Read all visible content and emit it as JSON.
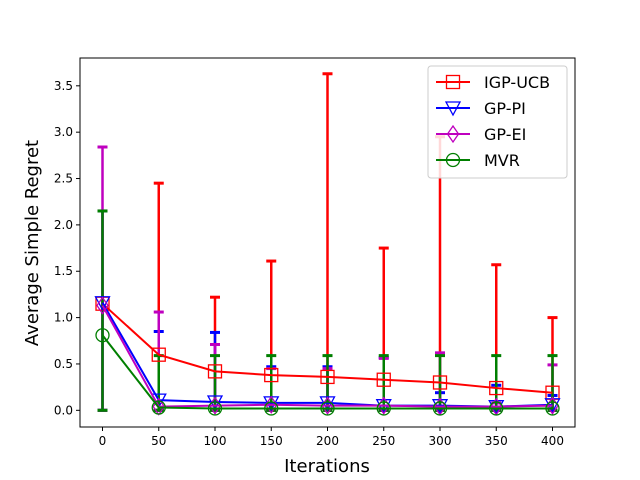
{
  "chart_data": {
    "type": "line",
    "title": "",
    "xlabel": "Iterations",
    "ylabel": "Average Simple Regret",
    "x": [
      0,
      50,
      100,
      150,
      200,
      250,
      300,
      350,
      400
    ],
    "xlim": [
      -20,
      420
    ],
    "ylim": [
      -0.18,
      3.8
    ],
    "xticks": [
      0,
      50,
      100,
      150,
      200,
      250,
      300,
      350,
      400
    ],
    "yticks": [
      0.0,
      0.5,
      1.0,
      1.5,
      2.0,
      2.5,
      3.0,
      3.5
    ],
    "ytick_labels": [
      "0.0",
      "0.5",
      "1.0",
      "1.5",
      "2.0",
      "2.5",
      "3.0",
      "3.5"
    ],
    "legend_position": "top-right",
    "series": [
      {
        "name": "IGP-UCB",
        "color": "#ff0000",
        "marker": "square",
        "values": [
          1.15,
          0.6,
          0.42,
          0.38,
          0.36,
          0.33,
          0.3,
          0.24,
          0.19
        ],
        "err_low": [
          0.0,
          0.0,
          0.0,
          0.0,
          0.0,
          0.0,
          0.0,
          0.0,
          0.0
        ],
        "err_high": [
          2.15,
          2.45,
          1.22,
          1.61,
          3.63,
          1.75,
          2.95,
          1.57,
          1.0
        ]
      },
      {
        "name": "GP-PI",
        "color": "#0000ff",
        "marker": "triangle-down",
        "values": [
          1.16,
          0.11,
          0.09,
          0.08,
          0.08,
          0.05,
          0.05,
          0.04,
          0.06
        ],
        "err_low": [
          0.0,
          0.0,
          0.0,
          0.0,
          0.0,
          0.0,
          0.0,
          0.0,
          0.0
        ],
        "err_high": [
          2.15,
          0.85,
          0.84,
          0.47,
          0.47,
          0.57,
          0.19,
          0.27,
          0.16
        ]
      },
      {
        "name": "GP-EI",
        "color": "#bf00bf",
        "marker": "diamond",
        "values": [
          1.13,
          0.04,
          0.05,
          0.06,
          0.05,
          0.05,
          0.04,
          0.04,
          0.05
        ],
        "err_low": [
          0.0,
          0.0,
          0.0,
          0.0,
          0.0,
          0.0,
          0.0,
          0.0,
          0.0
        ],
        "err_high": [
          2.84,
          1.06,
          0.71,
          0.45,
          0.45,
          0.56,
          0.62,
          0.08,
          0.49
        ]
      },
      {
        "name": "MVR",
        "color": "#007f00",
        "marker": "circle",
        "values": [
          0.81,
          0.03,
          0.02,
          0.02,
          0.02,
          0.02,
          0.02,
          0.02,
          0.02
        ],
        "err_low": [
          0.0,
          0.0,
          0.0,
          0.0,
          0.0,
          0.0,
          0.0,
          0.0,
          0.0
        ],
        "err_high": [
          2.15,
          0.59,
          0.59,
          0.59,
          0.59,
          0.59,
          0.59,
          0.59,
          0.59
        ]
      }
    ]
  }
}
